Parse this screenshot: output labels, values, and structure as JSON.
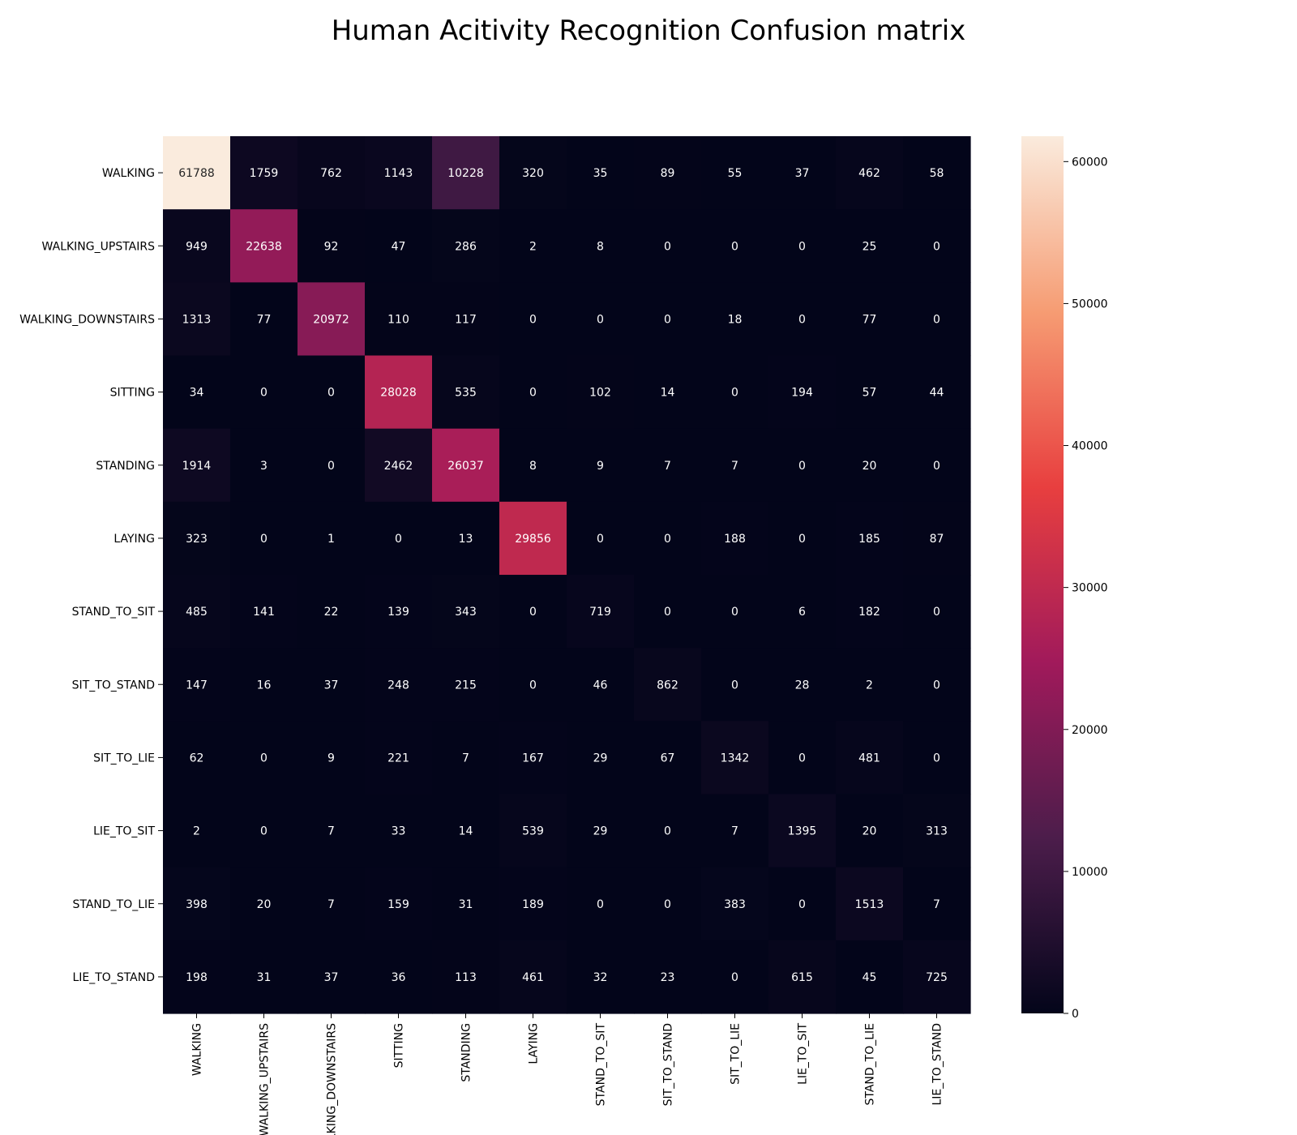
{
  "chart_data": {
    "type": "heatmap",
    "title": "Human Acitivity Recognition Confusion matrix",
    "xlabel": "",
    "ylabel": "",
    "row_labels": [
      "WALKING",
      "WALKING_UPSTAIRS",
      "WALKING_DOWNSTAIRS",
      "SITTING",
      "STANDING",
      "LAYING",
      "STAND_TO_SIT",
      "SIT_TO_STAND",
      "SIT_TO_LIE",
      "LIE_TO_SIT",
      "STAND_TO_LIE",
      "LIE_TO_STAND"
    ],
    "col_labels": [
      "WALKING",
      "WALKING_UPSTAIRS",
      "WALKING_DOWNSTAIRS",
      "SITTING",
      "STANDING",
      "LAYING",
      "STAND_TO_SIT",
      "SIT_TO_STAND",
      "SIT_TO_LIE",
      "LIE_TO_SIT",
      "STAND_TO_LIE",
      "LIE_TO_STAND"
    ],
    "values": [
      [
        61788,
        1759,
        762,
        1143,
        10228,
        320,
        35,
        89,
        55,
        37,
        462,
        58
      ],
      [
        949,
        22638,
        92,
        47,
        286,
        2,
        8,
        0,
        0,
        0,
        25,
        0
      ],
      [
        1313,
        77,
        20972,
        110,
        117,
        0,
        0,
        0,
        18,
        0,
        77,
        0
      ],
      [
        34,
        0,
        0,
        28028,
        535,
        0,
        102,
        14,
        0,
        194,
        57,
        44
      ],
      [
        1914,
        3,
        0,
        2462,
        26037,
        8,
        9,
        7,
        7,
        0,
        20,
        0
      ],
      [
        323,
        0,
        1,
        0,
        13,
        29856,
        0,
        0,
        188,
        0,
        185,
        87
      ],
      [
        485,
        141,
        22,
        139,
        343,
        0,
        719,
        0,
        0,
        6,
        182,
        0
      ],
      [
        147,
        16,
        37,
        248,
        215,
        0,
        46,
        862,
        0,
        28,
        2,
        0
      ],
      [
        62,
        0,
        9,
        221,
        7,
        167,
        29,
        67,
        1342,
        0,
        481,
        0
      ],
      [
        2,
        0,
        7,
        33,
        14,
        539,
        29,
        0,
        7,
        1395,
        20,
        313
      ],
      [
        398,
        20,
        7,
        159,
        31,
        189,
        0,
        0,
        383,
        0,
        1513,
        7
      ],
      [
        198,
        31,
        37,
        36,
        113,
        461,
        32,
        23,
        0,
        615,
        45,
        725
      ]
    ],
    "colorbar": {
      "min": 0,
      "max": 61788,
      "ticks": [
        0,
        10000,
        20000,
        30000,
        40000,
        50000,
        60000
      ]
    },
    "colormap": "rocket",
    "colormap_stops": [
      "#03051a",
      "#4c1d4b",
      "#a11a5b",
      "#e83f3f",
      "#f69c73",
      "#faebdd"
    ],
    "annotation_dark_text": "#262626",
    "annotation_light_text": "#ffffff"
  }
}
